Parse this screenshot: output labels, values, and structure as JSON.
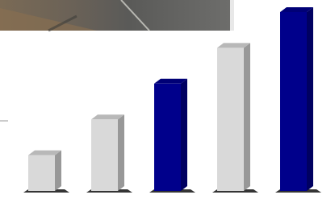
{
  "chart_data": {
    "type": "bar3d",
    "values": [
      1,
      2,
      3,
      4,
      5
    ],
    "colors": [
      "#d9d9d9",
      "#d9d9d9",
      "#00008b",
      "#d9d9d9",
      "#00008b"
    ],
    "ylim": [
      0,
      5
    ]
  }
}
